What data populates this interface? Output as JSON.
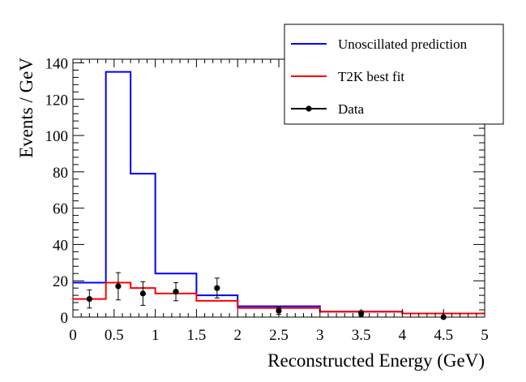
{
  "chart_data": {
    "type": "histogram",
    "xlabel": "Reconstructed Energy (GeV)",
    "ylabel": "Events / GeV",
    "xlim": [
      0,
      5
    ],
    "ylim": [
      0,
      142
    ],
    "xticks": [
      "0",
      "0.5",
      "1",
      "1.5",
      "2",
      "2.5",
      "3",
      "3.5",
      "4",
      "4.5",
      "5"
    ],
    "yticks": [
      "0",
      "20",
      "40",
      "60",
      "80",
      "100",
      "120",
      "140"
    ],
    "legend_position": "top-right",
    "bin_edges": [
      0,
      0.4,
      0.7,
      1.0,
      1.5,
      2.0,
      3.0,
      4.0,
      5.0
    ],
    "series": [
      {
        "name": "Unoscillated prediction",
        "kind": "step",
        "color": "#0000ff",
        "values": [
          19,
          135,
          79,
          24,
          12,
          6,
          3,
          2
        ]
      },
      {
        "name": "T2K best fit",
        "kind": "step",
        "color": "#ff0000",
        "values": [
          10,
          19,
          16,
          13,
          9,
          5,
          3,
          2
        ]
      },
      {
        "name": "Data",
        "kind": "points",
        "color": "#000000",
        "points": [
          {
            "x": 0.2,
            "y": 10,
            "err": 5
          },
          {
            "x": 0.55,
            "y": 17,
            "err": 7.5
          },
          {
            "x": 0.85,
            "y": 13,
            "err": 6.5
          },
          {
            "x": 1.25,
            "y": 14,
            "err": 5
          },
          {
            "x": 1.75,
            "y": 16,
            "err": 5.5
          },
          {
            "x": 2.5,
            "y": 3.5,
            "err": 2
          },
          {
            "x": 3.5,
            "y": 2,
            "err": 1.5
          },
          {
            "x": 4.5,
            "y": 0,
            "err": 0
          }
        ]
      }
    ]
  }
}
